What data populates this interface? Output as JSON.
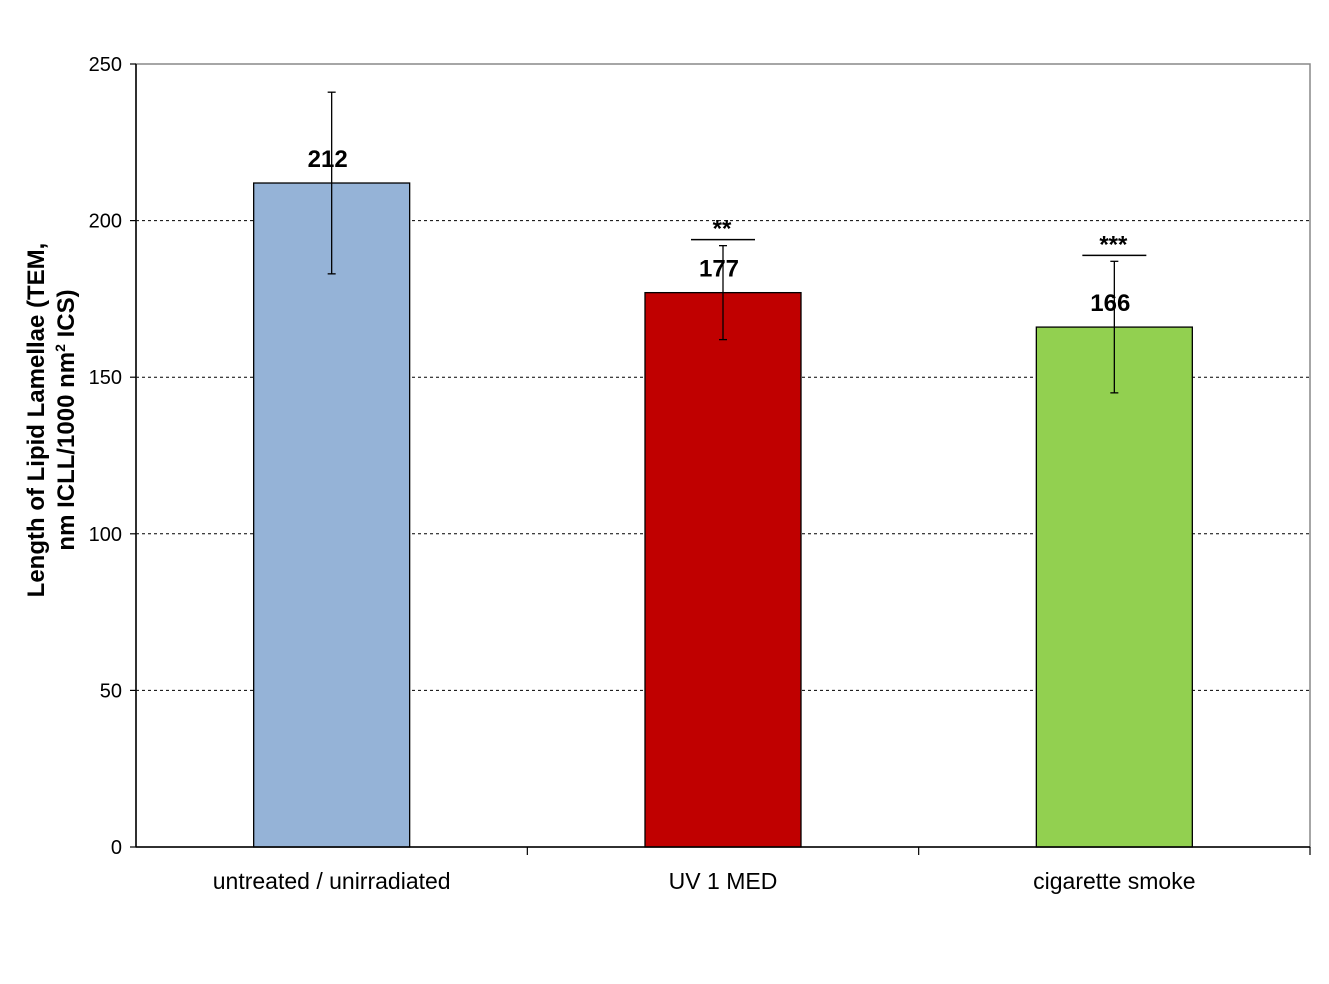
{
  "chart_data": {
    "type": "bar",
    "categories": [
      "untreated / unirradiated",
      "UV 1 MED",
      "cigarette smoke"
    ],
    "values": [
      212,
      177,
      166
    ],
    "value_labels": [
      "212",
      "177",
      "166"
    ],
    "errors": [
      29,
      15,
      21
    ],
    "significance": [
      "",
      "**",
      "***"
    ],
    "colors": [
      "#95B3D7",
      "#C00000",
      "#92D050"
    ],
    "ylabel_line1": "Length of Lipid Lamellae (TEM,",
    "ylabel_line2_prefix": "nm ICLL/1000 nm",
    "ylabel_line2_sup": "2",
    "ylabel_line2_suffix": " ICS)",
    "ylim": [
      0,
      250
    ],
    "yticks": [
      "0",
      "50",
      "100",
      "150",
      "200",
      "250"
    ],
    "grid": true,
    "grid_style": "dashed"
  }
}
